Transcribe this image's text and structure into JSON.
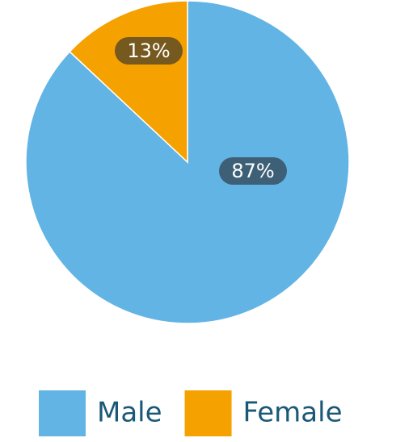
{
  "chart_data": {
    "type": "pie",
    "categories": [
      "Male",
      "Female"
    ],
    "values": [
      87,
      13
    ],
    "value_labels": [
      "87%",
      "13%"
    ],
    "colors": [
      "#62b4e5",
      "#f5a100"
    ],
    "legend": "bottom"
  }
}
